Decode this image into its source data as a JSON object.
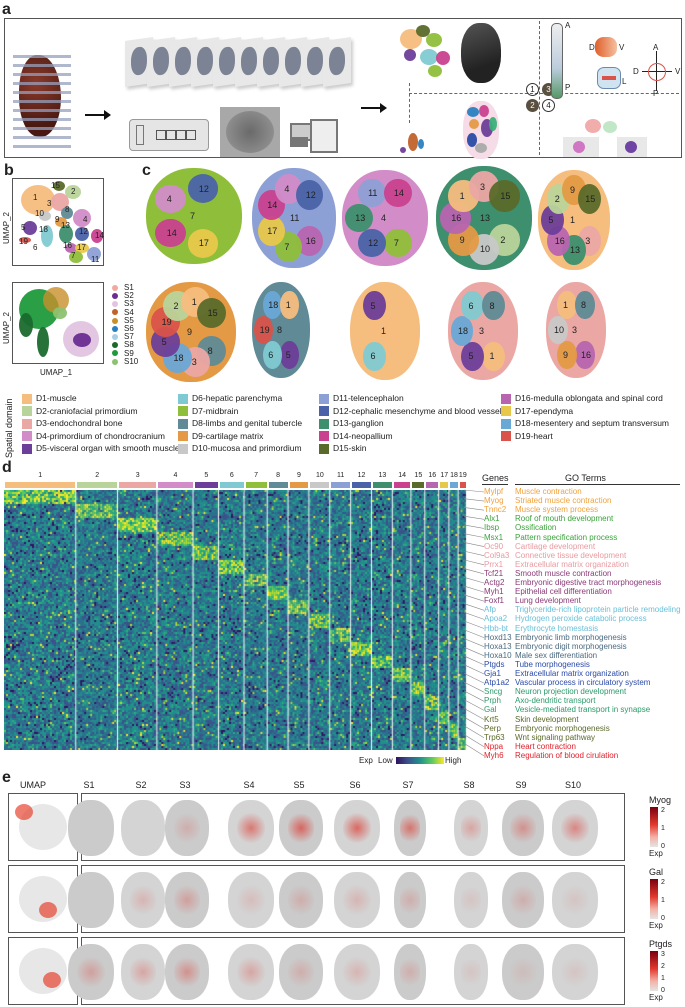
{
  "panels": {
    "a": {
      "label": "a",
      "orientation": {
        "anterior": "A",
        "posterior": "P",
        "dorsal": "D",
        "ventral": "V",
        "lateral": "L",
        "medial": "M"
      },
      "steps": [
        "1",
        "3",
        "2",
        "4"
      ]
    },
    "b": {
      "label": "b",
      "umap_top": {
        "y_label": "UMAP_2",
        "clusters": [
          "15",
          "2",
          "1",
          "3",
          "8",
          "10",
          "9",
          "5",
          "18",
          "13",
          "4",
          "12",
          "14",
          "19",
          "6",
          "16",
          "17",
          "7",
          "11"
        ]
      },
      "umap_bottom": {
        "y_label": "UMAP_2",
        "x_label": "UMAP_1"
      },
      "samples": [
        {
          "name": "S1",
          "color": "#f0a8a0"
        },
        {
          "name": "S2",
          "color": "#6a2d91"
        },
        {
          "name": "S3",
          "color": "#e2c4e0"
        },
        {
          "name": "S4",
          "color": "#c0622a"
        },
        {
          "name": "S5",
          "color": "#c8902a"
        },
        {
          "name": "S6",
          "color": "#2a7fc0"
        },
        {
          "name": "S7",
          "color": "#a8cfe4"
        },
        {
          "name": "S8",
          "color": "#1a6a2e"
        },
        {
          "name": "S9",
          "color": "#1f9a3c"
        },
        {
          "name": "S10",
          "color": "#8cc270"
        }
      ]
    },
    "c": {
      "label": "c",
      "sections_row1": [
        {
          "labels": [
            "7",
            "17",
            "14",
            "4",
            "12"
          ]
        },
        {
          "labels": [
            "11",
            "16",
            "7",
            "17",
            "14",
            "4",
            "12"
          ]
        },
        {
          "labels": [
            "4",
            "7",
            "12",
            "13",
            "11",
            "14"
          ]
        },
        {
          "labels": [
            "13",
            "2",
            "10",
            "9",
            "16",
            "1",
            "3",
            "15"
          ]
        },
        {
          "labels": [
            "1",
            "3",
            "13",
            "16",
            "5",
            "2",
            "9",
            "15"
          ]
        }
      ],
      "sections_row2": [
        {
          "labels": [
            "9",
            "8",
            "3",
            "18",
            "5",
            "19",
            "2",
            "1",
            "15"
          ]
        },
        {
          "labels": [
            "8",
            "5",
            "6",
            "19",
            "18",
            "1"
          ]
        },
        {
          "labels": [
            "1",
            "6",
            "5"
          ]
        },
        {
          "labels": [
            "3",
            "1",
            "5",
            "18",
            "6",
            "8"
          ]
        },
        {
          "labels": [
            "3",
            "16",
            "9",
            "10",
            "1",
            "8"
          ]
        }
      ],
      "legend_title": "Spatial domain",
      "domains": [
        {
          "id": "D1",
          "label": "D1-muscle",
          "color": "#f5bd7e"
        },
        {
          "id": "D2",
          "label": "D2-craniofacial primordium",
          "color": "#b9d49a"
        },
        {
          "id": "D3",
          "label": "D3-endochondral bone",
          "color": "#eba7a4"
        },
        {
          "id": "D4",
          "label": "D4-primordium of chondrocranium",
          "color": "#d28cc8"
        },
        {
          "id": "D5",
          "label": "D5-visceral organ with smooth muscle",
          "color": "#6d3e99"
        },
        {
          "id": "D6",
          "label": "D6-hepatic parenchyma",
          "color": "#7fcad2"
        },
        {
          "id": "D7",
          "label": "D7-midbrain",
          "color": "#8fbf3a"
        },
        {
          "id": "D8",
          "label": "D8-limbs and genital tubercle",
          "color": "#5f8a96"
        },
        {
          "id": "D9",
          "label": "D9-cartilage matrix",
          "color": "#e49a45"
        },
        {
          "id": "D10",
          "label": "D10-mucosa and primordium",
          "color": "#c8c8c8"
        },
        {
          "id": "D11",
          "label": "D11-telencephalon",
          "color": "#8da0d6"
        },
        {
          "id": "D12",
          "label": "D12-cephalic mesenchyme and blood vessels",
          "color": "#4a63a8"
        },
        {
          "id": "D13",
          "label": "D13-ganglion",
          "color": "#3d8f6e"
        },
        {
          "id": "D14",
          "label": "D14-neopallium",
          "color": "#c9418f"
        },
        {
          "id": "D15",
          "label": "D15-skin",
          "color": "#5a6a2a"
        },
        {
          "id": "D16",
          "label": "D16-medulla oblongata and spinal cord",
          "color": "#b865b0"
        },
        {
          "id": "D17",
          "label": "D17-ependyma",
          "color": "#e8c84a"
        },
        {
          "id": "D18",
          "label": "D18-mesentery and septum transversum",
          "color": "#6aa8d6"
        },
        {
          "id": "D19",
          "label": "D19-heart",
          "color": "#d9534a"
        }
      ]
    },
    "d": {
      "label": "d",
      "cluster_numbers": [
        "1",
        "2",
        "3",
        "4",
        "5",
        "6",
        "7",
        "8",
        "9",
        "10",
        "11",
        "12",
        "13",
        "14",
        "15",
        "16",
        "17",
        "18",
        "19"
      ],
      "cluster_widths_relative": [
        0.156,
        0.09,
        0.085,
        0.078,
        0.055,
        0.055,
        0.05,
        0.045,
        0.045,
        0.045,
        0.045,
        0.045,
        0.045,
        0.04,
        0.03,
        0.03,
        0.022,
        0.02,
        0.018
      ],
      "genes_header": "Genes",
      "go_header": "GO Terms",
      "colorbar": {
        "title": "Exp",
        "low": "Low",
        "high": "High"
      },
      "gene_rows": [
        {
          "gene": "Mylpf",
          "term": "Muscle contraction",
          "color": "#f0a23c"
        },
        {
          "gene": "Myog",
          "term": "Striated muscle contraction",
          "color": "#f0a23c"
        },
        {
          "gene": "Tnnc2",
          "term": "Muscle system process",
          "color": "#f0a23c"
        },
        {
          "gene": "Alx1",
          "term": "Roof of mouth development",
          "color": "#3aa23a"
        },
        {
          "gene": "Ibsp",
          "term": "Ossification",
          "color": "#3aa23a"
        },
        {
          "gene": "Msx1",
          "term": "Pattern specification process",
          "color": "#3aa23a"
        },
        {
          "gene": "Oc90",
          "term": "Cartilage development",
          "color": "#e89aa0"
        },
        {
          "gene": "Col9a3",
          "term": "Connective tissue development",
          "color": "#e89aa0"
        },
        {
          "gene": "Prrx1",
          "term": "Extracellular matrix organization",
          "color": "#e89aa0"
        },
        {
          "gene": "Tcf21",
          "term": "Smooth muscle contraction",
          "color": "#8a3a78"
        },
        {
          "gene": "Actg2",
          "term": "Embryonic digestive tract morphogenesis",
          "color": "#8a3a78"
        },
        {
          "gene": "Myh1",
          "term": "Epithelial cell differentiation",
          "color": "#8a3a78"
        },
        {
          "gene": "Foxf1",
          "term": "Lung development",
          "color": "#8a3a78"
        },
        {
          "gene": "Afp",
          "term": "Triglyceride-rich lipoprotein particle remodeling",
          "color": "#6ac0d8"
        },
        {
          "gene": "Apoa2",
          "term": "Hydrogen peroxide catabolic process",
          "color": "#6ac0d8"
        },
        {
          "gene": "Hbb-bt",
          "term": "Erythrocyte homestasis",
          "color": "#6ac0d8"
        },
        {
          "gene": "Hoxd13",
          "term": "Embryonic limb morphogenesis",
          "color": "#4a6a80"
        },
        {
          "gene": "Hoxa13",
          "term": "Embryonic digit morphogenesis",
          "color": "#4a6a80"
        },
        {
          "gene": "Hoxa10",
          "term": "Male sex differentiation",
          "color": "#4a6a80"
        },
        {
          "gene": "Ptgds",
          "term": "Tube morphogenesis",
          "color": "#2a4aa8"
        },
        {
          "gene": "Gja1",
          "term": "Extracellular matrix organization",
          "color": "#2a4aa8"
        },
        {
          "gene": "Atp1a2",
          "term": "Vascular process in circulatory system",
          "color": "#2a4aa8"
        },
        {
          "gene": "Sncg",
          "term": "Neuron projection development",
          "color": "#2a9a6a"
        },
        {
          "gene": "Prph",
          "term": "Axo-dendritic transport",
          "color": "#2a9a6a"
        },
        {
          "gene": "Gal",
          "term": "Vesicle-mediated transport in synapse",
          "color": "#2a9a6a"
        },
        {
          "gene": "Krt5",
          "term": "Skin development",
          "color": "#5a6a2a"
        },
        {
          "gene": "Perp",
          "term": "Embryonic morphogenesis",
          "color": "#5a6a2a"
        },
        {
          "gene": "Trp63",
          "term": "Wnt signaling pathway",
          "color": "#5a6a2a"
        },
        {
          "gene": "Nppa",
          "term": "Heart contraction",
          "color": "#e0202a"
        },
        {
          "gene": "Myh6",
          "term": "Regulation of blood cirulation",
          "color": "#e0202a"
        }
      ]
    },
    "e": {
      "label": "e",
      "columns": [
        "UMAP",
        "S1",
        "S2",
        "S3",
        "S4",
        "S5",
        "S6",
        "S7",
        "S8",
        "S9",
        "S10"
      ],
      "rows": [
        {
          "gene": "Myog",
          "ticks": [
            "2",
            "1",
            "0"
          ],
          "exp_label": "Exp"
        },
        {
          "gene": "Gal",
          "ticks": [
            "2",
            "1",
            "0"
          ],
          "exp_label": "Exp"
        },
        {
          "gene": "Ptgds",
          "ticks": [
            "3",
            "2",
            "1",
            "0"
          ],
          "exp_label": "Exp"
        }
      ]
    }
  }
}
